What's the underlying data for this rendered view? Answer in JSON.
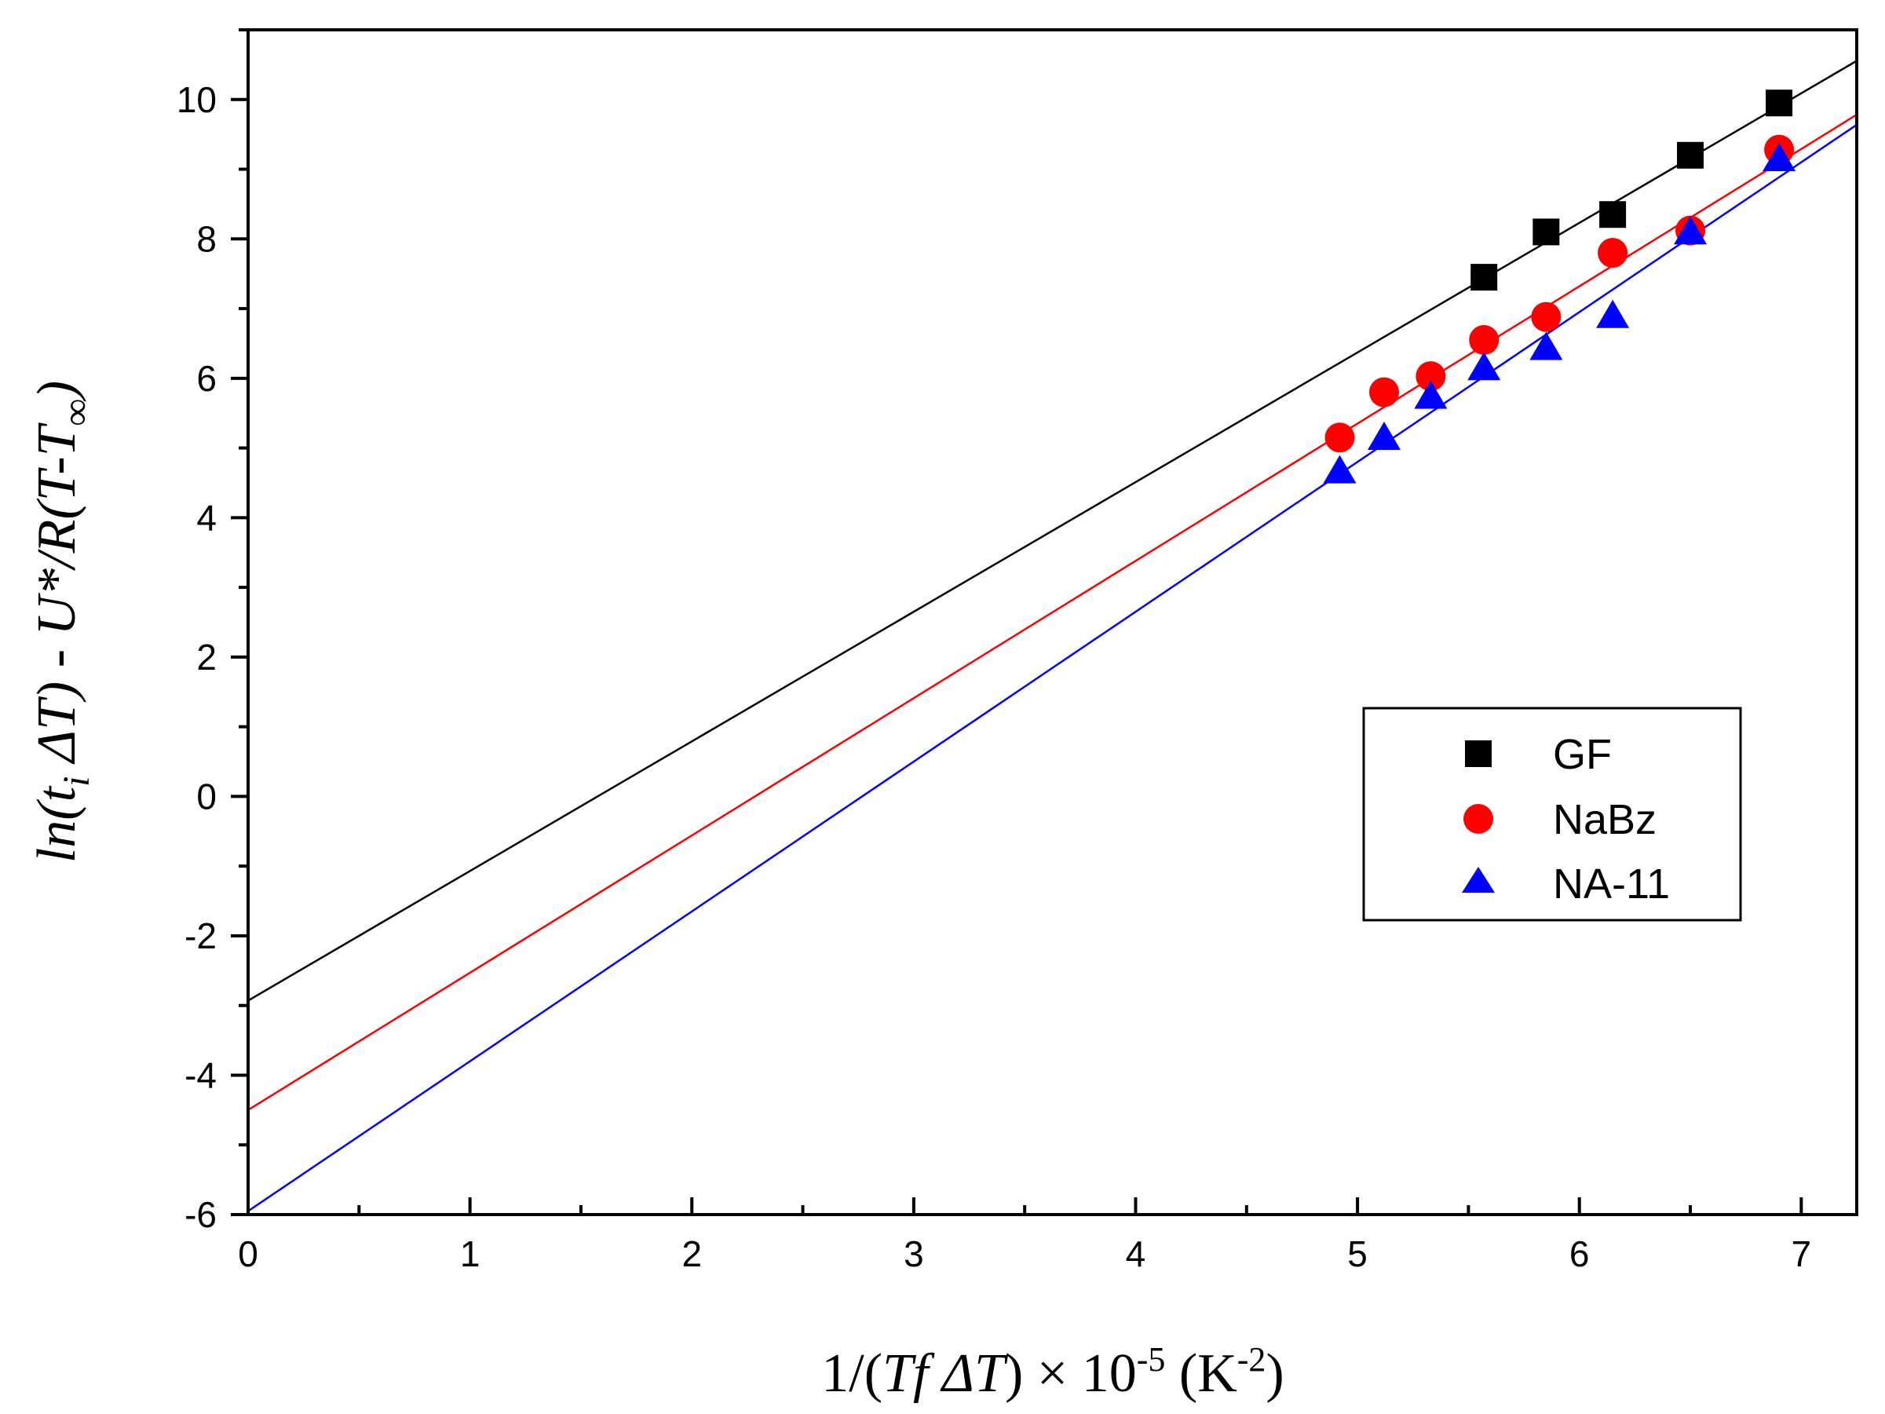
{
  "chart_data": {
    "type": "scatter",
    "title": "",
    "xlabel": {
      "prefix": "1/(",
      "main": "Tf ΔT",
      "mid": ") × 10",
      "exp": "-5",
      "unit_pre": " (K",
      "unit_exp": "-2",
      "unit_post": ")"
    },
    "ylabel": {
      "pre": "ln(t",
      "sub_i": "i",
      "mid": " ΔT) - U*/R(T-T",
      "sub_inf": "∞",
      "post": ")"
    },
    "xlim": [
      0,
      7.25
    ],
    "ylim": [
      -6,
      11
    ],
    "x_ticks": [
      0,
      1,
      2,
      3,
      4,
      5,
      6,
      7
    ],
    "x_tick_labels": [
      "0",
      "1",
      "2",
      "3",
      "4",
      "5",
      "6",
      "7"
    ],
    "y_ticks": [
      -6,
      -4,
      -2,
      0,
      2,
      4,
      6,
      8,
      10
    ],
    "y_tick_labels": [
      "-6",
      "-4",
      "-2",
      "0",
      "2",
      "4",
      "6",
      "8",
      "10"
    ],
    "grid": false,
    "legend_position": "center-right",
    "series": [
      {
        "name": "GF",
        "marker": "square",
        "color": "#000000",
        "points": [
          [
            5.57,
            7.45
          ],
          [
            5.85,
            8.1
          ],
          [
            6.15,
            8.35
          ],
          [
            6.5,
            9.2
          ],
          [
            6.9,
            9.95
          ]
        ],
        "fit": {
          "intercept": -2.93,
          "slope": 1.86
        }
      },
      {
        "name": "NaBz",
        "marker": "circle",
        "color": "#ff0000",
        "points": [
          [
            4.92,
            5.15
          ],
          [
            5.12,
            5.8
          ],
          [
            5.33,
            6.03
          ],
          [
            5.57,
            6.55
          ],
          [
            5.85,
            6.88
          ],
          [
            6.15,
            7.8
          ],
          [
            6.5,
            8.12
          ],
          [
            6.9,
            9.28
          ]
        ],
        "fit": {
          "intercept": -4.5,
          "slope": 1.97
        }
      },
      {
        "name": "NA-11",
        "marker": "triangle",
        "color": "#0000ff",
        "points": [
          [
            4.92,
            4.65
          ],
          [
            5.12,
            5.13
          ],
          [
            5.33,
            5.72
          ],
          [
            5.57,
            6.13
          ],
          [
            5.85,
            6.42
          ],
          [
            6.15,
            6.88
          ],
          [
            6.5,
            8.08
          ],
          [
            6.9,
            9.13
          ]
        ],
        "fit": {
          "intercept": -5.95,
          "slope": 2.15
        }
      }
    ]
  }
}
